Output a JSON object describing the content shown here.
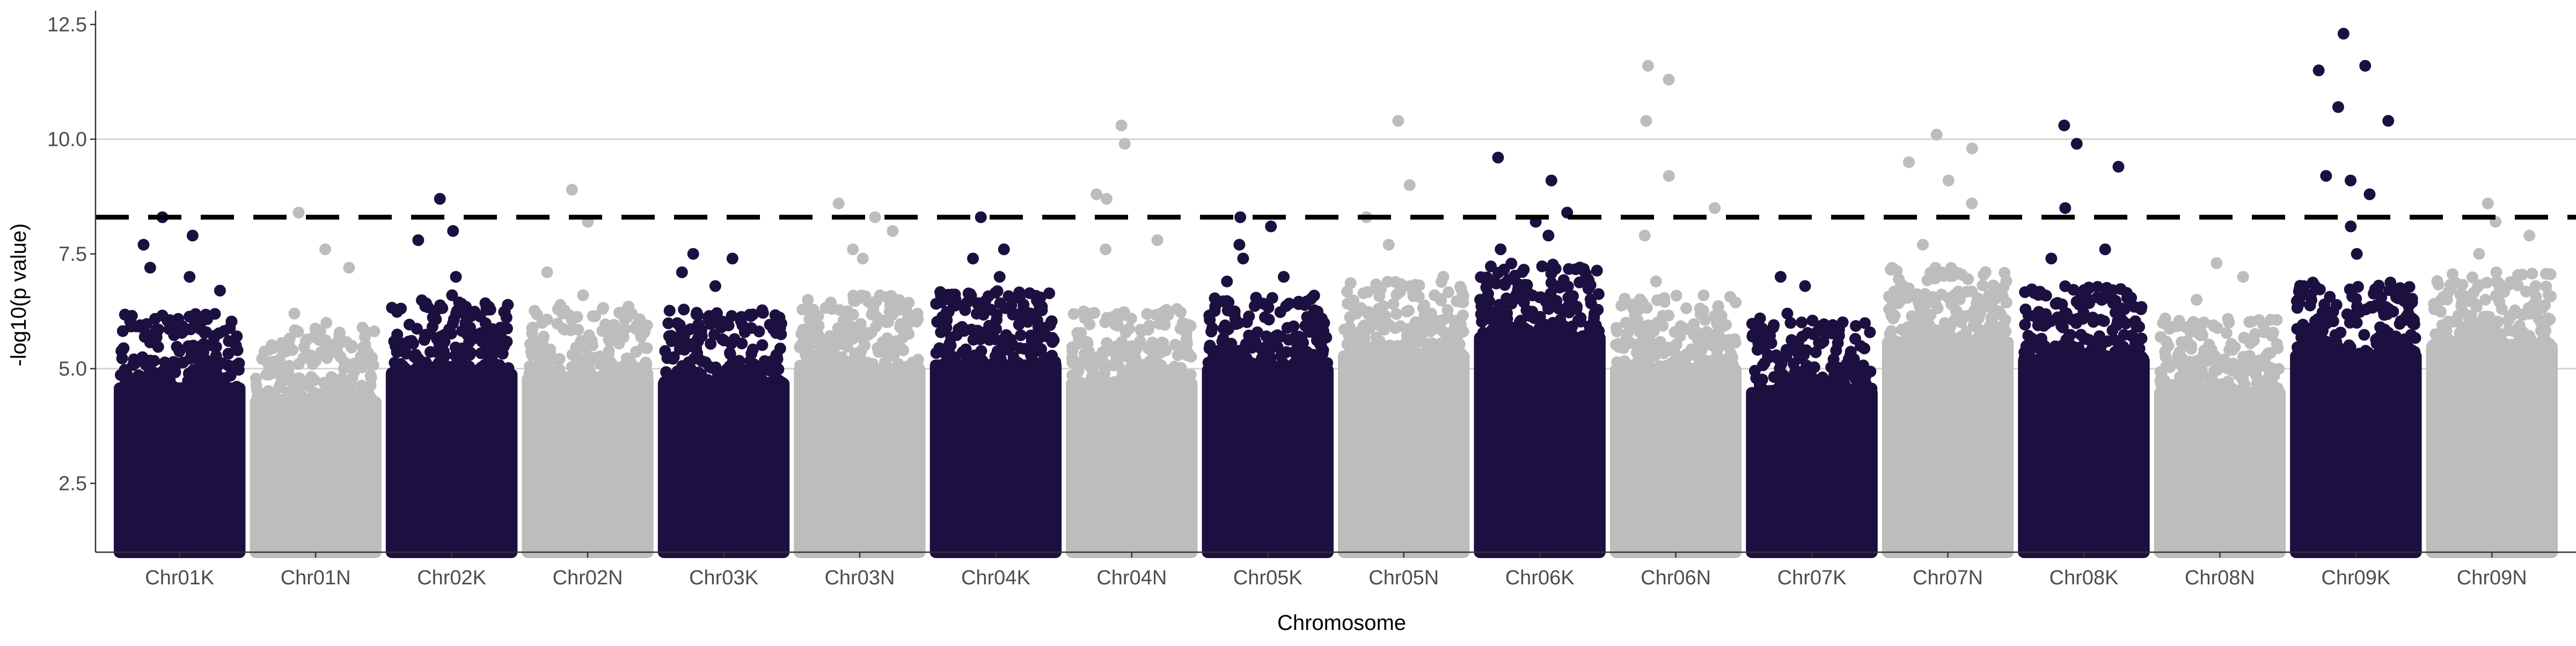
{
  "chart_data": {
    "type": "scatter",
    "subtype": "manhattan",
    "title": "",
    "xlabel": "Chromosome",
    "ylabel": "-log10(p value)",
    "ylim": [
      1,
      12.8
    ],
    "yticks": [
      2.5,
      5.0,
      7.5,
      10.0,
      12.5
    ],
    "ytick_labels": [
      "2.5",
      "5.0",
      "7.5",
      "10.0",
      "12.5"
    ],
    "gridlines_y": [
      5.0,
      10.0
    ],
    "threshold": 8.3,
    "threshold_style": "dashed",
    "colors": {
      "dark": "#1c1040",
      "light": "#bdbdbd",
      "threshold": "#000000"
    },
    "categories": [
      "Chr01K",
      "Chr01N",
      "Chr02K",
      "Chr02N",
      "Chr03K",
      "Chr03N",
      "Chr04K",
      "Chr04N",
      "Chr05K",
      "Chr05N",
      "Chr06K",
      "Chr06N",
      "Chr07K",
      "Chr07N",
      "Chr08K",
      "Chr08N",
      "Chr09K",
      "Chr09N"
    ],
    "series": [
      {
        "chromosome": "Chr01K",
        "color": "dark",
        "bulk_max": 5.9,
        "peaks": [
          8.3,
          7.9,
          7.7,
          7.2,
          7.0,
          6.7
        ]
      },
      {
        "chromosome": "Chr01N",
        "color": "light",
        "bulk_max": 5.6,
        "peaks": [
          8.4,
          7.6,
          7.2,
          6.2,
          6.0
        ]
      },
      {
        "chromosome": "Chr02K",
        "color": "dark",
        "bulk_max": 6.2,
        "peaks": [
          8.7,
          8.0,
          7.8,
          7.0,
          6.6
        ]
      },
      {
        "chromosome": "Chr02N",
        "color": "light",
        "bulk_max": 6.1,
        "peaks": [
          8.9,
          8.2,
          7.1,
          6.6
        ]
      },
      {
        "chromosome": "Chr03K",
        "color": "dark",
        "bulk_max": 6.0,
        "peaks": [
          7.5,
          7.4,
          7.1,
          6.8
        ]
      },
      {
        "chromosome": "Chr03N",
        "color": "light",
        "bulk_max": 6.3,
        "peaks": [
          8.6,
          8.3,
          8.0,
          7.6,
          7.4
        ]
      },
      {
        "chromosome": "Chr04K",
        "color": "dark",
        "bulk_max": 6.4,
        "peaks": [
          8.3,
          7.6,
          7.4,
          7.0
        ]
      },
      {
        "chromosome": "Chr04N",
        "color": "light",
        "bulk_max": 6.0,
        "peaks": [
          10.3,
          9.9,
          8.8,
          8.7,
          7.8,
          7.6
        ]
      },
      {
        "chromosome": "Chr05K",
        "color": "dark",
        "bulk_max": 6.3,
        "peaks": [
          8.3,
          8.1,
          7.7,
          7.4,
          7.0,
          6.9
        ]
      },
      {
        "chromosome": "Chr05N",
        "color": "light",
        "bulk_max": 6.6,
        "peaks": [
          10.4,
          9.0,
          8.3,
          7.7,
          7.0
        ]
      },
      {
        "chromosome": "Chr06K",
        "color": "dark",
        "bulk_max": 7.0,
        "peaks": [
          9.6,
          9.1,
          8.4,
          8.2,
          7.9,
          7.6
        ]
      },
      {
        "chromosome": "Chr06N",
        "color": "light",
        "bulk_max": 6.3,
        "peaks": [
          11.6,
          11.3,
          10.4,
          9.2,
          8.5,
          7.9,
          6.9
        ]
      },
      {
        "chromosome": "Chr07K",
        "color": "dark",
        "bulk_max": 5.8,
        "peaks": [
          7.0,
          6.8,
          6.2
        ]
      },
      {
        "chromosome": "Chr07N",
        "color": "light",
        "bulk_max": 6.9,
        "peaks": [
          10.1,
          9.8,
          9.5,
          9.1,
          8.6,
          7.7
        ]
      },
      {
        "chromosome": "Chr08K",
        "color": "dark",
        "bulk_max": 6.5,
        "peaks": [
          10.3,
          9.9,
          9.4,
          8.5,
          7.6,
          7.4
        ]
      },
      {
        "chromosome": "Chr08N",
        "color": "light",
        "bulk_max": 5.8,
        "peaks": [
          7.3,
          7.0,
          6.5
        ]
      },
      {
        "chromosome": "Chr09K",
        "color": "dark",
        "bulk_max": 6.6,
        "peaks": [
          12.3,
          11.6,
          11.5,
          10.7,
          10.4,
          9.2,
          9.1,
          8.8,
          8.1,
          7.5
        ]
      },
      {
        "chromosome": "Chr09N",
        "color": "light",
        "bulk_max": 6.8,
        "peaks": [
          8.6,
          8.2,
          7.9,
          7.5,
          7.1
        ]
      }
    ]
  }
}
